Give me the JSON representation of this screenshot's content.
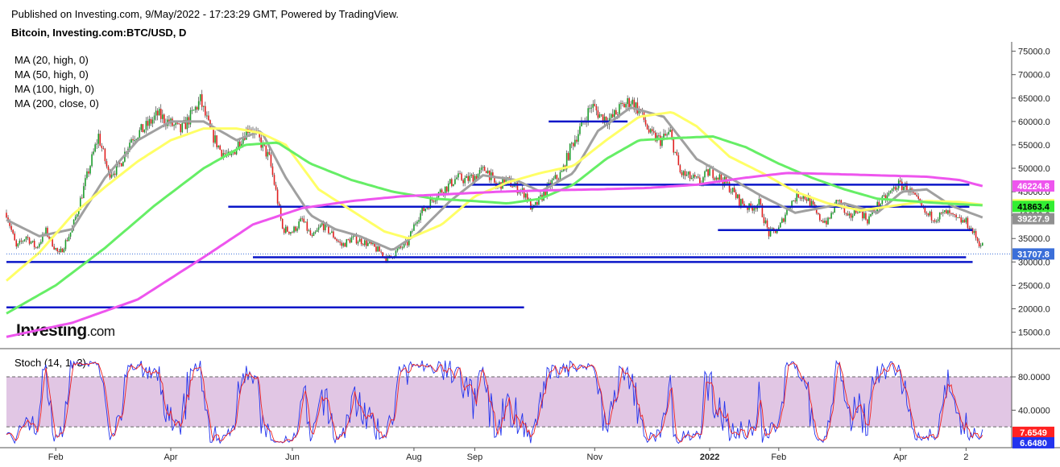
{
  "header": {
    "published": "Published on Investing.com, 9/May/2022 - 17:23:29 GMT, Powered by TradingView.",
    "symbol": "Bitcoin, Investing.com:BTC/USD, D"
  },
  "indicators": [
    "MA (20, high, 0)",
    "MA (50, high, 0)",
    "MA (100, high, 0)",
    "MA (200, close, 0)"
  ],
  "oscillator_label": "Stoch (14, 1, 3)",
  "logo": {
    "main": "Investing",
    "suffix": ".com"
  },
  "chart_data": [
    {
      "type": "candlestick",
      "title": "Bitcoin, Investing.com:BTC/USD, D",
      "ylim": [
        12000,
        77000
      ],
      "y_ticks": [
        "75000.0",
        "70000.0",
        "65000.0",
        "60000.0",
        "55000.0",
        "50000.0",
        "45000.0",
        "40000.0",
        "35000.0",
        "30000.0",
        "25000.0",
        "20000.0",
        "15000.0"
      ],
      "x_ticks": [
        "Feb",
        "Apr",
        "Jun",
        "Aug",
        "Sep",
        "Nov",
        "2022",
        "Feb",
        "Apr",
        "2"
      ],
      "price_path": [
        [
          0,
          40500
        ],
        [
          6,
          33000
        ],
        [
          12,
          35500
        ],
        [
          18,
          33000
        ],
        [
          24,
          36500
        ],
        [
          32,
          31500
        ],
        [
          40,
          37000
        ],
        [
          48,
          47000
        ],
        [
          56,
          57000
        ],
        [
          62,
          49000
        ],
        [
          68,
          50000
        ],
        [
          76,
          56500
        ],
        [
          84,
          58500
        ],
        [
          92,
          61500
        ],
        [
          100,
          59500
        ],
        [
          106,
          58000
        ],
        [
          112,
          61000
        ],
        [
          118,
          64500
        ],
        [
          124,
          58000
        ],
        [
          130,
          54000
        ],
        [
          136,
          52000
        ],
        [
          142,
          56000
        ],
        [
          148,
          59000
        ],
        [
          154,
          56000
        ],
        [
          160,
          52000
        ],
        [
          164,
          45000
        ],
        [
          168,
          37000
        ],
        [
          174,
          36500
        ],
        [
          180,
          39000
        ],
        [
          186,
          35000
        ],
        [
          192,
          38000
        ],
        [
          198,
          36000
        ],
        [
          204,
          33500
        ],
        [
          210,
          35000
        ],
        [
          216,
          34500
        ],
        [
          222,
          33500
        ],
        [
          228,
          32000
        ],
        [
          232,
          30500
        ],
        [
          238,
          32500
        ],
        [
          244,
          34000
        ],
        [
          250,
          39500
        ],
        [
          256,
          42000
        ],
        [
          262,
          44500
        ],
        [
          268,
          46000
        ],
        [
          274,
          48000
        ],
        [
          280,
          47500
        ],
        [
          286,
          48500
        ],
        [
          292,
          50000
        ],
        [
          298,
          46000
        ],
        [
          304,
          47500
        ],
        [
          310,
          46000
        ],
        [
          316,
          44500
        ],
        [
          320,
          41000
        ],
        [
          326,
          44000
        ],
        [
          332,
          47000
        ],
        [
          338,
          49000
        ],
        [
          344,
          55000
        ],
        [
          350,
          59000
        ],
        [
          356,
          63500
        ],
        [
          362,
          61000
        ],
        [
          368,
          60500
        ],
        [
          374,
          63000
        ],
        [
          380,
          64500
        ],
        [
          386,
          62000
        ],
        [
          392,
          57000
        ],
        [
          398,
          56000
        ],
        [
          404,
          57500
        ],
        [
          410,
          49000
        ],
        [
          416,
          48000
        ],
        [
          422,
          47000
        ],
        [
          428,
          49500
        ],
        [
          434,
          48000
        ],
        [
          440,
          46000
        ],
        [
          446,
          43000
        ],
        [
          452,
          41500
        ],
        [
          458,
          42500
        ],
        [
          464,
          36000
        ],
        [
          470,
          37000
        ],
        [
          476,
          42000
        ],
        [
          482,
          44500
        ],
        [
          488,
          43500
        ],
        [
          494,
          39500
        ],
        [
          500,
          38500
        ],
        [
          506,
          43500
        ],
        [
          512,
          39000
        ],
        [
          518,
          41500
        ],
        [
          524,
          39000
        ],
        [
          530,
          42000
        ],
        [
          536,
          44000
        ],
        [
          542,
          46500
        ],
        [
          548,
          46000
        ],
        [
          554,
          43000
        ],
        [
          560,
          40000
        ],
        [
          566,
          39500
        ],
        [
          572,
          40500
        ],
        [
          578,
          39000
        ],
        [
          584,
          38500
        ],
        [
          588,
          36500
        ],
        [
          592,
          34000
        ],
        [
          594,
          33500
        ]
      ],
      "series": [
        {
          "name": "MA (20, high, 0)",
          "color": "#a0a0a0",
          "values": [
            [
              0,
              39000
            ],
            [
              20,
              35500
            ],
            [
              40,
              37000
            ],
            [
              60,
              48000
            ],
            [
              80,
              56000
            ],
            [
              100,
              60000
            ],
            [
              120,
              60000
            ],
            [
              140,
              56000
            ],
            [
              155,
              58000
            ],
            [
              170,
              48000
            ],
            [
              185,
              40000
            ],
            [
              200,
              37000
            ],
            [
              215,
              35500
            ],
            [
              235,
              32500
            ],
            [
              250,
              36000
            ],
            [
              270,
              43000
            ],
            [
              290,
              48500
            ],
            [
              310,
              47500
            ],
            [
              325,
              45000
            ],
            [
              345,
              49000
            ],
            [
              360,
              58000
            ],
            [
              380,
              63000
            ],
            [
              400,
              61000
            ],
            [
              420,
              52000
            ],
            [
              440,
              48000
            ],
            [
              460,
              44000
            ],
            [
              480,
              40500
            ],
            [
              495,
              41500
            ],
            [
              510,
              42500
            ],
            [
              530,
              40500
            ],
            [
              545,
              45000
            ],
            [
              560,
              45500
            ],
            [
              575,
              42000
            ],
            [
              594,
              39500
            ]
          ]
        },
        {
          "name": "MA (50, high, 0)",
          "color": "#ffff66",
          "values": [
            [
              0,
              26000
            ],
            [
              20,
              32000
            ],
            [
              40,
              40000
            ],
            [
              60,
              46000
            ],
            [
              80,
              51500
            ],
            [
              100,
              56000
            ],
            [
              120,
              58500
            ],
            [
              140,
              58500
            ],
            [
              155,
              57500
            ],
            [
              170,
              55000
            ],
            [
              190,
              45500
            ],
            [
              210,
              41000
            ],
            [
              230,
              36500
            ],
            [
              245,
              35000
            ],
            [
              265,
              38000
            ],
            [
              285,
              44000
            ],
            [
              305,
              47000
            ],
            [
              325,
              49000
            ],
            [
              345,
              50500
            ],
            [
              365,
              56000
            ],
            [
              385,
              61000
            ],
            [
              405,
              62000
            ],
            [
              420,
              59000
            ],
            [
              440,
              52500
            ],
            [
              460,
              49000
            ],
            [
              480,
              45000
            ],
            [
              500,
              42500
            ],
            [
              520,
              41000
            ],
            [
              540,
              42000
            ],
            [
              560,
              43000
            ],
            [
              580,
              42800
            ],
            [
              594,
              42200
            ]
          ]
        },
        {
          "name": "MA (100, high, 0)",
          "color": "#66ee66",
          "values": [
            [
              0,
              19000
            ],
            [
              30,
              25000
            ],
            [
              60,
              33000
            ],
            [
              90,
              42000
            ],
            [
              120,
              50000
            ],
            [
              145,
              55000
            ],
            [
              165,
              55500
            ],
            [
              185,
              51000
            ],
            [
              210,
              47500
            ],
            [
              235,
              45000
            ],
            [
              260,
              43500
            ],
            [
              285,
              43000
            ],
            [
              305,
              42500
            ],
            [
              325,
              43500
            ],
            [
              345,
              46500
            ],
            [
              365,
              52000
            ],
            [
              385,
              56000
            ],
            [
              410,
              56500
            ],
            [
              430,
              56800
            ],
            [
              450,
              54500
            ],
            [
              470,
              51000
            ],
            [
              490,
              48000
            ],
            [
              510,
              45500
            ],
            [
              530,
              43500
            ],
            [
              550,
              43000
            ],
            [
              570,
              42500
            ],
            [
              594,
              42100
            ]
          ]
        },
        {
          "name": "MA (200, close, 0)",
          "color": "#ee55ee",
          "values": [
            [
              0,
              14000
            ],
            [
              40,
              17000
            ],
            [
              80,
              22000
            ],
            [
              120,
              31000
            ],
            [
              150,
              38000
            ],
            [
              180,
              41500
            ],
            [
              210,
              43000
            ],
            [
              240,
              44000
            ],
            [
              270,
              44500
            ],
            [
              300,
              45000
            ],
            [
              330,
              45300
            ],
            [
              360,
              45500
            ],
            [
              390,
              45800
            ],
            [
              420,
              46500
            ],
            [
              450,
              48000
            ],
            [
              475,
              49000
            ],
            [
              500,
              48800
            ],
            [
              530,
              48500
            ],
            [
              560,
              48200
            ],
            [
              580,
              47500
            ],
            [
              594,
              46200
            ]
          ]
        }
      ],
      "horizontal_lines": [
        {
          "from": 0,
          "to": 588,
          "value": 30000
        },
        {
          "from": 150,
          "to": 584,
          "value": 31000
        },
        {
          "from": 135,
          "to": 586,
          "value": 41800
        },
        {
          "from": 283,
          "to": 586,
          "value": 46500
        },
        {
          "from": 330,
          "to": 378,
          "value": 60000
        },
        {
          "from": 0,
          "to": 315,
          "value": 20300
        },
        {
          "from": 433,
          "to": 588,
          "value": 36800
        }
      ],
      "last_value_labels": [
        {
          "text": "46224.8",
          "value": 46224.8,
          "color": "#ee55ee"
        },
        {
          "text": "42228.4",
          "value": 42228.4,
          "color": "#ffff66"
        },
        {
          "text": "41863.4",
          "value": 41863.4,
          "color": "#33ee33"
        },
        {
          "text": "39227.9",
          "value": 39227.9,
          "color": "#909090"
        },
        {
          "text": "31707.8",
          "value": 31707.8,
          "color": "#3b6fd9"
        }
      ]
    },
    {
      "type": "line",
      "title": "Stoch (14, 1, 3)",
      "ylim": [
        -5,
        110
      ],
      "y_ticks": [
        "80.0000",
        "40.0000"
      ],
      "band": [
        20,
        80
      ],
      "last_value_labels": [
        {
          "text": "7.6549",
          "value": 7.6549,
          "color": "#ff2222"
        },
        {
          "text": "6.6480",
          "value": 6.648,
          "color": "#2233ee"
        }
      ]
    }
  ]
}
